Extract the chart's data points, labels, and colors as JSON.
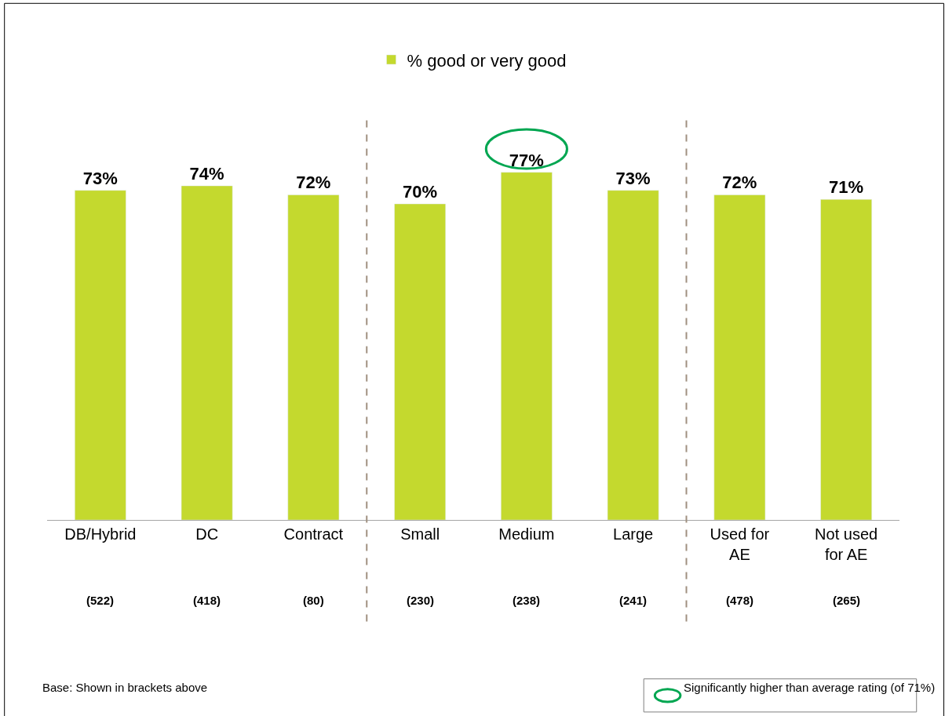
{
  "chart_data": {
    "type": "bar",
    "categories": [
      "DB/Hybrid",
      "DC",
      "Contract",
      "Small",
      "Medium",
      "Large",
      "Used for AE",
      "Not used for AE"
    ],
    "series": [
      {
        "name": "% good or very good",
        "color": "#c4d92e",
        "values": [
          73,
          74,
          72,
          70,
          77,
          73,
          72,
          71
        ],
        "value_labels": [
          "73%",
          "74%",
          "72%",
          "70%",
          "77%",
          "73%",
          "72%",
          "71%"
        ]
      }
    ],
    "annotations": [
      "(522)",
      "(418)",
      "(80)",
      "(230)",
      "(238)",
      "(241)",
      "(478)",
      "(265)",
      "Base: Shown in brackets above",
      "Significantly higher than average rating (of 71%)"
    ],
    "legend": "top",
    "tick_labels": "x"
  }
}
